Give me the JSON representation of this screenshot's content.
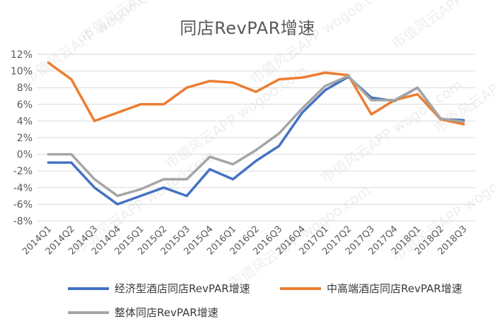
{
  "chart_data": {
    "type": "line",
    "title": "同店RevPAR增速",
    "xlabel": "",
    "ylabel": "",
    "categories": [
      "2014Q1",
      "2014Q2",
      "2014Q3",
      "2014Q4",
      "2015Q1",
      "2015Q2",
      "2015Q3",
      "2015Q4",
      "2016Q1",
      "2016Q2",
      "2016Q3",
      "2016Q4",
      "2017Q1",
      "2017Q2",
      "2017Q3",
      "2017Q4",
      "2018Q1",
      "2018Q2",
      "2018Q3"
    ],
    "ylim": [
      -8,
      12
    ],
    "yticks": [
      "12%",
      "10%",
      "8%",
      "6%",
      "4%",
      "2%",
      "0%",
      "-2%",
      "-4%",
      "-6%",
      "-8%"
    ],
    "grid": true,
    "legend_position": "bottom",
    "series": [
      {
        "name": "经济型酒店同店RevPAR增速",
        "color": "#4472C4",
        "values": [
          -1,
          -1,
          -4,
          -6,
          -5,
          -4,
          -5,
          -1.8,
          -3,
          -0.8,
          1,
          5,
          7.7,
          9.3,
          6.8,
          6.4,
          8,
          4.2,
          4.1
        ]
      },
      {
        "name": "中高端酒店同店RevPAR增速",
        "color": "#ED7D31",
        "values": [
          11,
          9,
          4,
          5,
          6,
          6,
          8,
          8.8,
          8.6,
          7.5,
          9,
          9.2,
          9.8,
          9.5,
          4.8,
          6.5,
          7.2,
          4.2,
          3.6
        ]
      },
      {
        "name": "整体同店RevPAR增速",
        "color": "#A5A5A5",
        "values": [
          0,
          0,
          -3,
          -5,
          -4.2,
          -3,
          -3,
          -0.3,
          -1.2,
          0.5,
          2.5,
          5.5,
          8.2,
          9.4,
          6.5,
          6.5,
          8,
          4.3,
          3.9
        ]
      }
    ],
    "watermark": "市值风云APP  wogoo.com"
  }
}
